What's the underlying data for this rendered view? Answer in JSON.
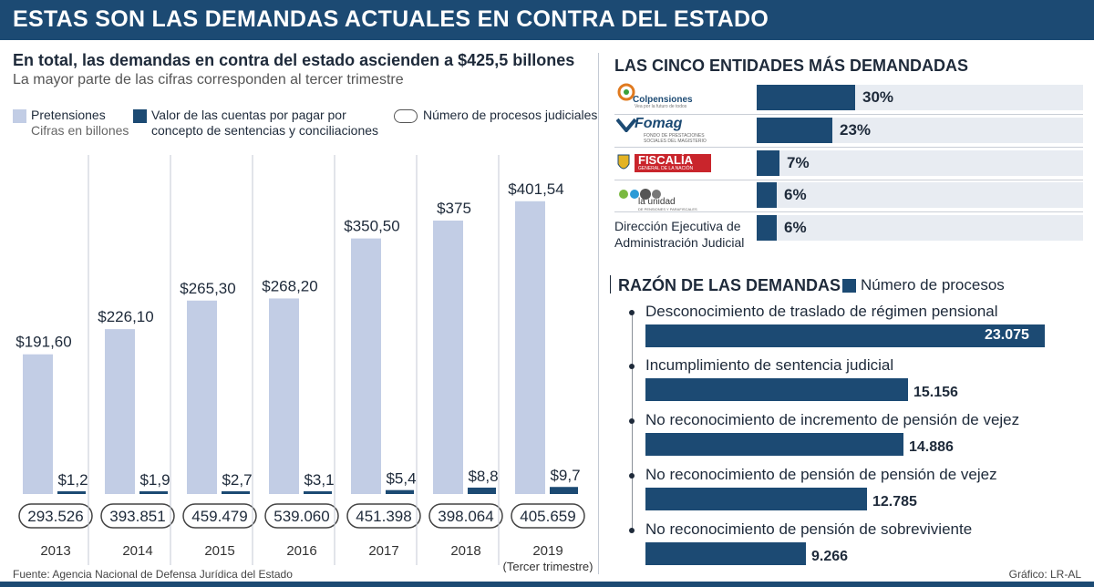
{
  "header": {
    "title": "ESTAS SON LAS DEMANDAS ACTUALES EN CONTRA DEL ESTADO"
  },
  "colors": {
    "accent": "#1c4a73",
    "light_bar": "#c2cde5",
    "row_bg": "#e8ecf2"
  },
  "left": {
    "title": "En total, las demandas en contra del estado ascienden a $425,5 billones",
    "subtitle": "La mayor parte de las cifras corresponden al tercer trimestre",
    "legend": {
      "pretensiones": "Pretensiones",
      "pretensiones_sub": "Cifras en billones",
      "cuentas_line1": "Valor de las cuentas por pagar por",
      "cuentas_line2": "concepto de sentencias y conciliaciones",
      "procesos": "Número de procesos  judiciales"
    }
  },
  "chart_data": [
    {
      "type": "bar",
      "categories": [
        "2013",
        "2014",
        "2015",
        "2016",
        "2017",
        "2018",
        "2019"
      ],
      "category_sublabels": [
        "",
        "",
        "",
        "",
        "",
        "",
        "(Tercer trimestre)"
      ],
      "series": [
        {
          "name": "Pretensiones",
          "values": [
            191.6,
            226.1,
            265.3,
            268.2,
            350.5,
            375,
            401.54
          ],
          "labels": [
            "$191,60",
            "$226,10",
            "$265,30",
            "$268,20",
            "$350,50",
            "$375",
            "$401,54"
          ]
        },
        {
          "name": "Valor de las cuentas por pagar por concepto de sentencias y conciliaciones",
          "values": [
            1.2,
            1.9,
            2.7,
            3.1,
            5.4,
            8.8,
            9.7
          ],
          "labels": [
            "$1,2",
            "$1,9",
            "$2,7",
            "$3,1",
            "$5,4",
            "$8,8",
            "$9,7"
          ]
        },
        {
          "name": "Número de procesos  judiciales",
          "values": [
            293526,
            393851,
            459479,
            539060,
            451398,
            398064,
            405659
          ],
          "labels": [
            "293.526",
            "393.851",
            "459.479",
            "539.060",
            "451.398",
            "398.064",
            "405.659"
          ]
        }
      ],
      "ylabel": "Cifras en billones",
      "ylim": [
        0,
        450
      ]
    },
    {
      "type": "bar",
      "title": "LAS CINCO ENTIDADES MÁS DEMANDADAS",
      "categories": [
        "Colpensiones",
        "Fomag",
        "Fiscalía",
        "La Unidad de Pensiones y Parafiscales",
        "Dirección Ejecutiva de Administración Judicial"
      ],
      "values": [
        30,
        23,
        7,
        6,
        6
      ],
      "labels": [
        "30%",
        "23%",
        "7%",
        "6%",
        "6%"
      ],
      "unit": "%",
      "ylim": [
        0,
        100
      ]
    },
    {
      "type": "bar",
      "title": "RAZÓN DE LAS DEMANDAS",
      "categories": [
        "Desconocimiento de traslado de régimen pensional",
        "Incumplimiento de sentencia judicial",
        "No reconocimiento de incremento de pensión de vejez",
        "No reconocimiento de pensión de pensión de vejez",
        "No reconocimiento de pensión de sobreviviente"
      ],
      "series": [
        {
          "name": "Número de procesos",
          "values": [
            23075,
            15156,
            14886,
            12785,
            9266
          ],
          "labels": [
            "23.075",
            "15.156",
            "14.886",
            "12.785",
            "9.266"
          ]
        }
      ],
      "ylim": [
        0,
        23075
      ]
    }
  ],
  "entities": {
    "title": "LAS CINCO ENTIDADES MÁS DEMANDADAS",
    "logos": {
      "colpensiones": "Colpensiones",
      "colpensiones_tag": "Vea por la futuro de todos",
      "fomag": "Fomag",
      "fomag_sub1": "FONDO DE PRESTACIONES",
      "fomag_sub2": "SOCIALES DEL MAGISTERIO",
      "fiscalia": "FISCALÍA",
      "fiscalia_sub": "GENERAL DE LA NACIÓN",
      "unidad": "la unidad",
      "unidad_sub": "DE PENSIONES Y PARAFISCALES",
      "deaj_line1": "Dirección Ejecutiva de",
      "deaj_line2": "Administración Judicial"
    }
  },
  "reasons": {
    "title": "RAZÓN DE LAS DEMANDAS",
    "legend": "Número de procesos"
  },
  "footer": {
    "source": "Fuente: Agencia Nacional de Defensa Jurídica del Estado",
    "credit": "Gráfico: LR-AL"
  }
}
